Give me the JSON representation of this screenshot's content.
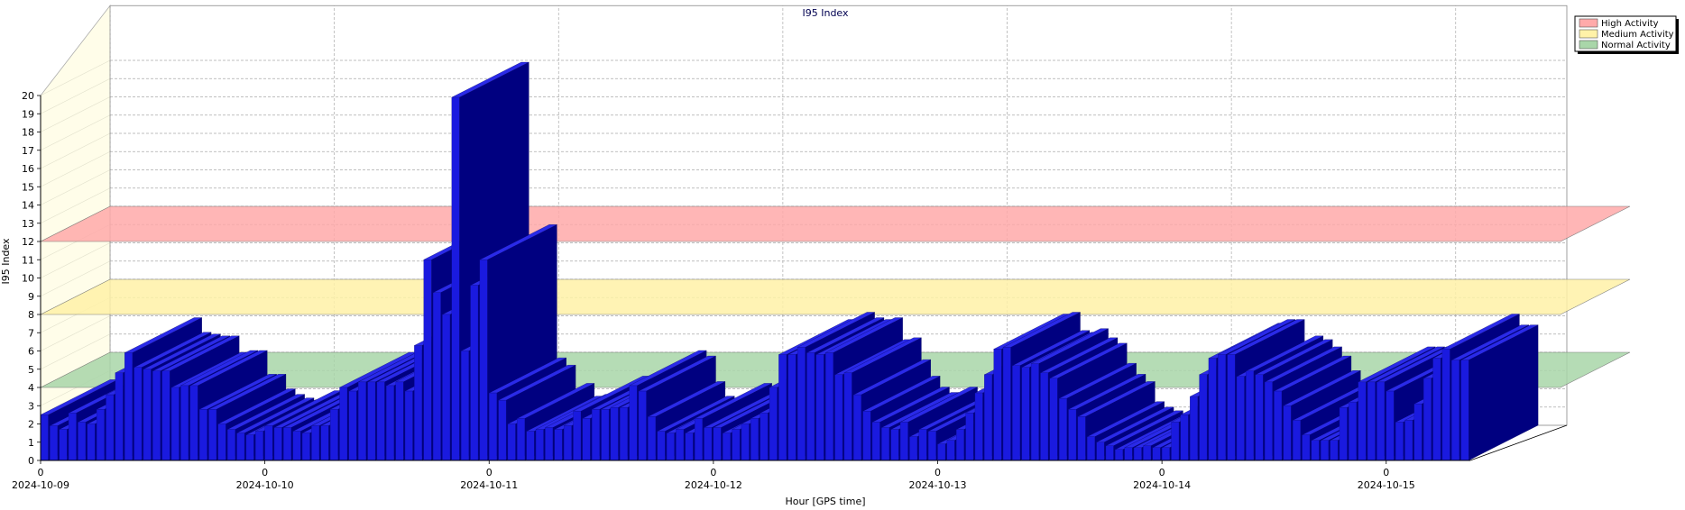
{
  "chart_data": {
    "type": "bar",
    "title": "I95 Index",
    "xlabel": "Hour [GPS time]",
    "ylabel": "I95 Index",
    "ylim": [
      0,
      20
    ],
    "grid": true,
    "y_ticks": [
      "0",
      "1",
      "2",
      "3",
      "4",
      "5",
      "6",
      "7",
      "8",
      "9",
      "10",
      "11",
      "12",
      "13",
      "14",
      "15",
      "16",
      "17",
      "18",
      "19",
      "20"
    ],
    "x_tick_hours": [
      "0",
      "0",
      "0",
      "0",
      "0",
      "0",
      "0"
    ],
    "x_tick_dates": [
      "2024-10-09",
      "2024-10-10",
      "2024-10-11",
      "2024-10-12",
      "2024-10-13",
      "2024-10-14",
      "2024-10-15"
    ],
    "bar_color": "#1a1adf",
    "bands": [
      {
        "name": "High Activity",
        "from": 8,
        "to": 12,
        "color": "#ffaaaa"
      },
      {
        "name": "Medium Activity",
        "from": 4,
        "to": 8,
        "color": "#fff2a8"
      },
      {
        "name": "Normal Activity",
        "from": 2,
        "to": 4,
        "color": "#a9d6a9"
      }
    ],
    "legend": {
      "position": "top-right",
      "entries": [
        {
          "label": "High Activity",
          "color": "#ffaaaa"
        },
        {
          "label": "Medium Activity",
          "color": "#fff2a8"
        },
        {
          "label": "Normal Activity",
          "color": "#a9d6a9"
        }
      ]
    },
    "series": [
      {
        "values": [
          2.5,
          1.9,
          1.7,
          2.6,
          2.1,
          2.0,
          2.8,
          3.6,
          4.8,
          5.9,
          5.1,
          5.0,
          4.9,
          4.9,
          4.0,
          4.1,
          4.1,
          2.8,
          2.8,
          2.0,
          1.7,
          1.5,
          1.4,
          1.6,
          1.9,
          1.8,
          1.8,
          1.6,
          1.5,
          1.9,
          1.9,
          2.8,
          4.0,
          3.8,
          4.3,
          4.3,
          4.3,
          4.1,
          4.3,
          3.8,
          6.3,
          11.0,
          9.2,
          8.0,
          19.9,
          6.0,
          9.6,
          11.0,
          3.7,
          3.3,
          2.0,
          2.3,
          1.6,
          1.7,
          1.8,
          1.7,
          1.9,
          2.7,
          2.3,
          2.8,
          2.8,
          2.9,
          2.9,
          4.1,
          3.8,
          2.4,
          1.6,
          1.5,
          1.7,
          1.5,
          2.3,
          1.8,
          1.8,
          1.5,
          1.7,
          2.0,
          2.3,
          2.6,
          4.0,
          5.8,
          5.8,
          6.2,
          5.9,
          5.8,
          5.9,
          4.7,
          4.8,
          3.6,
          2.7,
          2.1,
          1.8,
          1.7,
          2.1,
          1.3,
          1.7,
          1.6,
          0.9,
          1.1,
          1.7,
          2.6,
          3.7,
          4.7,
          6.1,
          6.2,
          5.2,
          5.1,
          5.3,
          4.8,
          4.5,
          3.4,
          2.8,
          2.4,
          1.3,
          1.0,
          0.8,
          0.6,
          0.7,
          0.7,
          0.8,
          0.7,
          0.7,
          2.1,
          2.5,
          3.5,
          4.7,
          5.6,
          5.8,
          5.8,
          4.6,
          4.9,
          4.7,
          4.3,
          3.8,
          3.0,
          2.2,
          1.4,
          1.1,
          1.1,
          1.1,
          2.9,
          3.2,
          4.3,
          4.3,
          4.3,
          3.8,
          2.1,
          2.2,
          3.1,
          4.5,
          5.6,
          6.1,
          5.5,
          5.5
        ]
      }
    ]
  }
}
